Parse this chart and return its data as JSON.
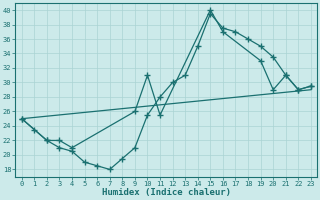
{
  "xlabel": "Humidex (Indice chaleur)",
  "background_color": "#cceaea",
  "line_color": "#1a7070",
  "grid_color": "#aad4d4",
  "xlim": [
    -0.5,
    23.5
  ],
  "ylim": [
    17,
    41
  ],
  "yticks": [
    18,
    20,
    22,
    24,
    26,
    28,
    30,
    32,
    34,
    36,
    38,
    40
  ],
  "xticks": [
    0,
    1,
    2,
    3,
    4,
    5,
    6,
    7,
    8,
    9,
    10,
    11,
    12,
    13,
    14,
    15,
    16,
    17,
    18,
    19,
    20,
    21,
    22,
    23
  ],
  "line1_x": [
    0,
    1,
    2,
    3,
    4,
    5,
    6,
    7,
    8,
    9,
    10,
    11,
    12,
    13,
    14,
    15,
    16,
    17,
    18,
    19,
    20,
    21,
    22,
    23
  ],
  "line1_y": [
    25,
    23.5,
    22,
    21,
    20.5,
    19,
    18.5,
    18,
    19.5,
    21,
    25.5,
    28,
    30,
    31,
    35,
    39.5,
    37.5,
    37,
    36,
    35,
    33.5,
    31,
    29,
    29.5
  ],
  "line2_x": [
    0,
    2,
    3,
    4,
    9,
    10,
    11,
    15,
    16,
    19,
    20,
    21,
    22,
    23
  ],
  "line2_y": [
    25,
    22,
    22,
    21,
    26,
    31,
    25.5,
    40,
    37,
    33,
    29,
    31,
    29,
    29.5
  ],
  "line3_x": [
    0,
    23
  ],
  "line3_y": [
    25,
    29
  ],
  "marker": "+",
  "markersize": 4,
  "markeredgewidth": 1.0,
  "linewidth": 0.9,
  "tick_fontsize": 5,
  "xlabel_fontsize": 6.5
}
